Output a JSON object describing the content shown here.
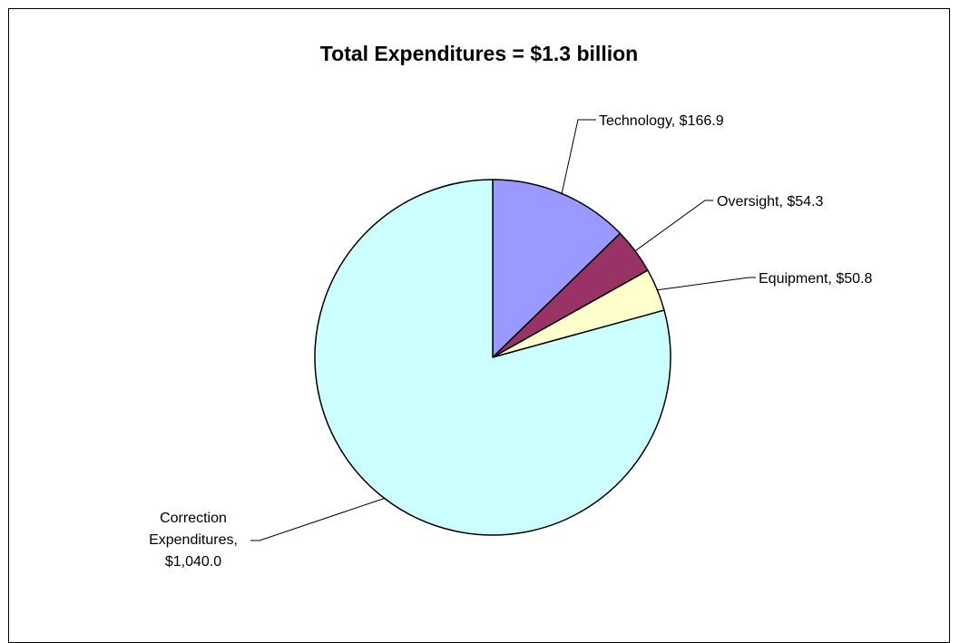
{
  "chart_data": {
    "type": "pie",
    "title": "Total Expenditures = $1.3 billion",
    "start_angle_deg": 0,
    "direction": "clockwise",
    "slices": [
      {
        "name": "Technology",
        "value": 166.9,
        "label_lines": [
          "Technology, $166.9"
        ],
        "color": "#9999FF"
      },
      {
        "name": "Oversight",
        "value": 54.3,
        "label_lines": [
          "Oversight, $54.3"
        ],
        "color": "#993366"
      },
      {
        "name": "Equipment",
        "value": 50.8,
        "label_lines": [
          "Equipment, $50.8"
        ],
        "color": "#FFFFCC"
      },
      {
        "name": "Correction Expenditures",
        "value": 1040.0,
        "label_lines": [
          "Correction",
          "Expenditures,",
          "$1,040.0"
        ],
        "color": "#CCFFFF"
      }
    ]
  }
}
